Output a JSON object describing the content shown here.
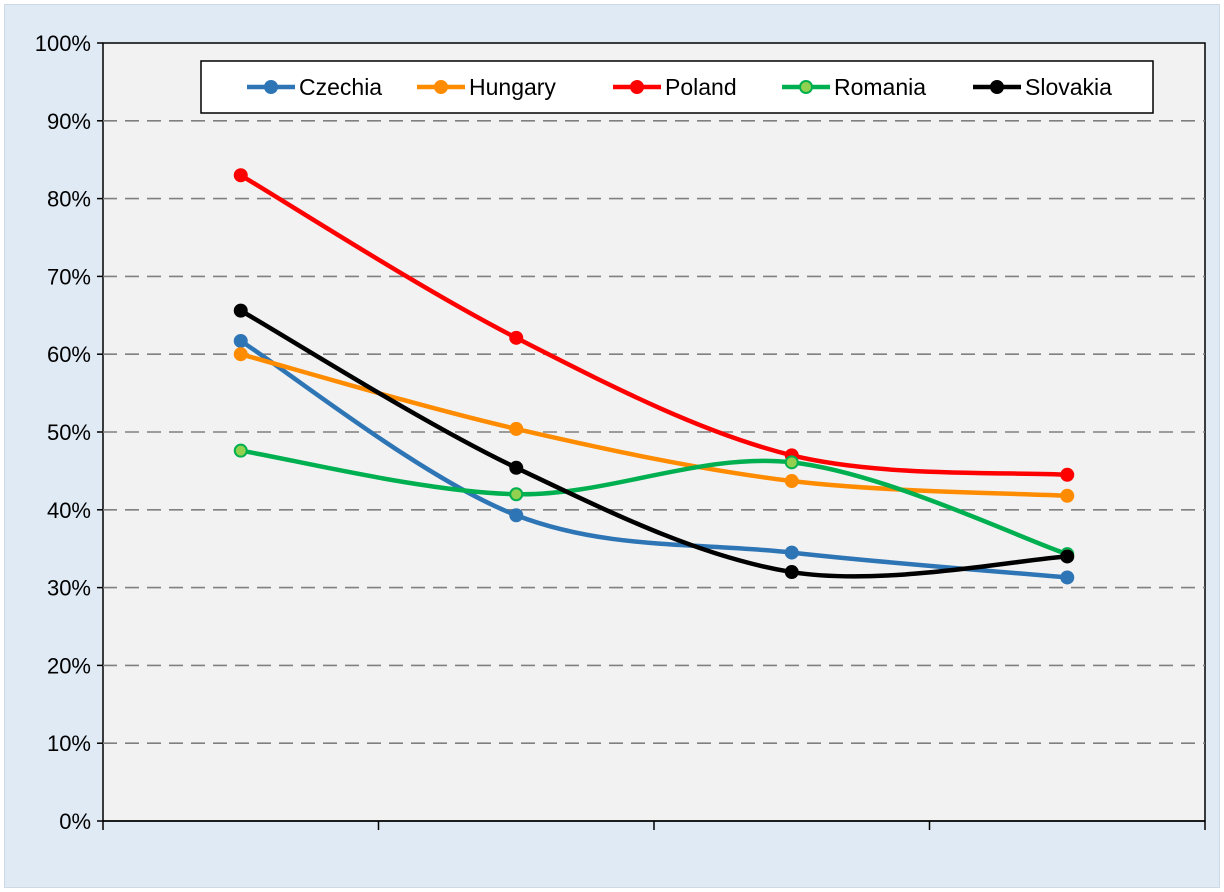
{
  "chart_data": {
    "type": "line",
    "smooth": true,
    "categories": [
      "",
      "",
      "",
      ""
    ],
    "y_ticks": [
      "0%",
      "10%",
      "20%",
      "30%",
      "40%",
      "50%",
      "60%",
      "70%",
      "80%",
      "90%",
      "100%"
    ],
    "ylim": [
      0,
      100
    ],
    "y_unit": "%",
    "grid": "horizontal-dashed",
    "legend_position": "top",
    "plot_background": "#f2f2f2",
    "frame_background": "#dfeaf5",
    "series": [
      {
        "name": "Czechia",
        "color": "#2e75b6",
        "values": [
          61.7,
          39.3,
          34.5,
          31.3
        ]
      },
      {
        "name": "Hungary",
        "color": "#ff8c00",
        "values": [
          60.0,
          50.4,
          43.7,
          41.8
        ]
      },
      {
        "name": "Poland",
        "color": "#ff0000",
        "values": [
          83.0,
          62.1,
          47.0,
          44.5
        ]
      },
      {
        "name": "Romania",
        "color": "#00b050",
        "marker_fill": "#92d050",
        "values": [
          47.6,
          42.0,
          46.1,
          34.3
        ]
      },
      {
        "name": "Slovakia",
        "color": "#000000",
        "values": [
          65.6,
          45.4,
          32.0,
          34.0
        ]
      }
    ]
  }
}
